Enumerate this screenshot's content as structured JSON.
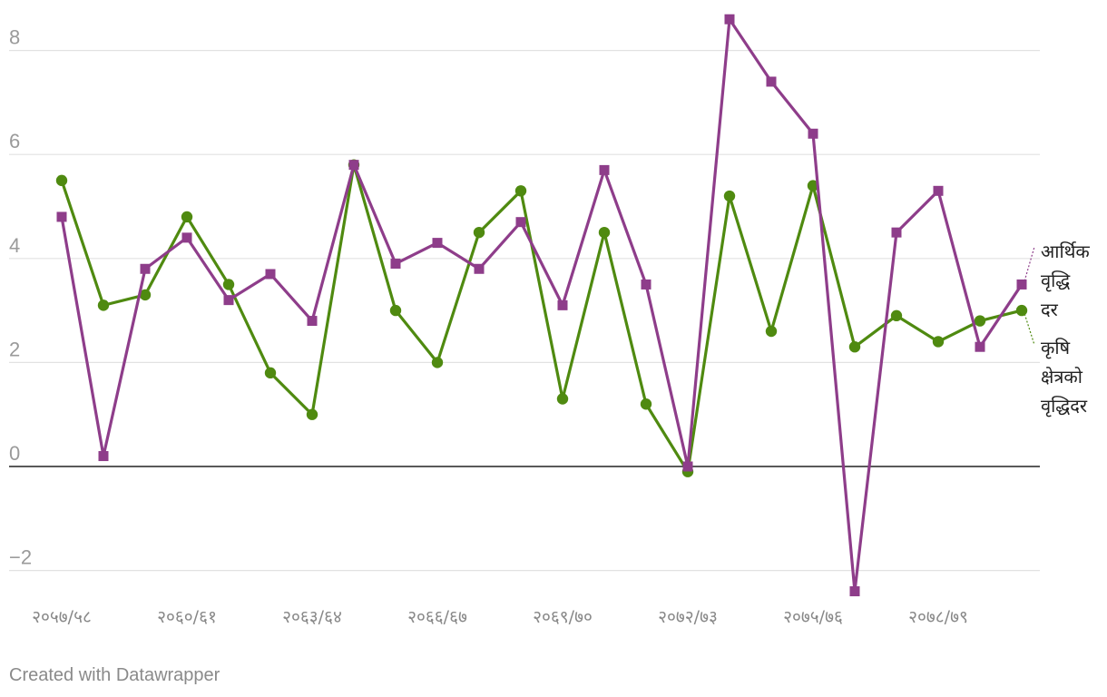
{
  "chart_data": {
    "type": "line",
    "title": "",
    "xlabel": "",
    "ylabel": "",
    "ylim": [
      -2.5,
      8.7
    ],
    "yticks": [
      "8",
      "6",
      "4",
      "2",
      "0",
      "−2"
    ],
    "ytick_values": [
      8,
      6,
      4,
      2,
      0,
      -2
    ],
    "grid": true,
    "x": [
      "२०५७/५८",
      "२०५८/५९",
      "२०५९/६०",
      "२०६०/६१",
      "२०६१/६२",
      "२०६२/६३",
      "२०६३/६४",
      "२०६४/६५",
      "२०६५/६६",
      "२०६६/६७",
      "२०६७/६८",
      "२०६८/६९",
      "२०६९/७०",
      "२०७०/७१",
      "२०७१/७२",
      "२०७२/७३",
      "२०७३/७४",
      "२०७४/७५",
      "२०७५/७६",
      "२०७६/७७",
      "२०७७/७८",
      "२०७८/७९",
      "२०७९/८०",
      "२०८०/८१"
    ],
    "xtick_labels": [
      "२०५७/५८",
      "२०६०/६१",
      "२०६३/६४",
      "२०६६/६७",
      "२०६९/७०",
      "२०७२/७३",
      "२०७५/७६",
      "२०७८/७९"
    ],
    "xtick_indices": [
      0,
      3,
      6,
      9,
      12,
      15,
      18,
      21
    ],
    "series": [
      {
        "name": "आर्थिक वृद्धि दर",
        "legend_lines": [
          "आर्थिक",
          "वृद्धि",
          "दर"
        ],
        "color": "#8e3d8a",
        "marker": "square",
        "values": [
          4.8,
          0.2,
          3.8,
          4.4,
          3.2,
          3.7,
          2.8,
          5.8,
          3.9,
          4.3,
          3.8,
          4.7,
          3.1,
          5.7,
          3.5,
          0.0,
          8.6,
          7.4,
          6.4,
          -2.4,
          4.5,
          5.3,
          2.3,
          3.5
        ]
      },
      {
        "name": "कृषि क्षेत्रको वृद्धिदर",
        "legend_lines": [
          "कृषि",
          "क्षेत्रको",
          "वृद्धिदर"
        ],
        "color": "#4f8a10",
        "marker": "circle",
        "values": [
          5.5,
          3.1,
          3.3,
          4.8,
          3.5,
          1.8,
          1.0,
          5.8,
          3.0,
          2.0,
          4.5,
          5.3,
          1.3,
          4.5,
          1.2,
          -0.1,
          5.2,
          2.6,
          5.4,
          2.3,
          2.9,
          2.4,
          2.8,
          3.0
        ]
      }
    ]
  },
  "footer": {
    "credit": "Created with Datawrapper"
  }
}
